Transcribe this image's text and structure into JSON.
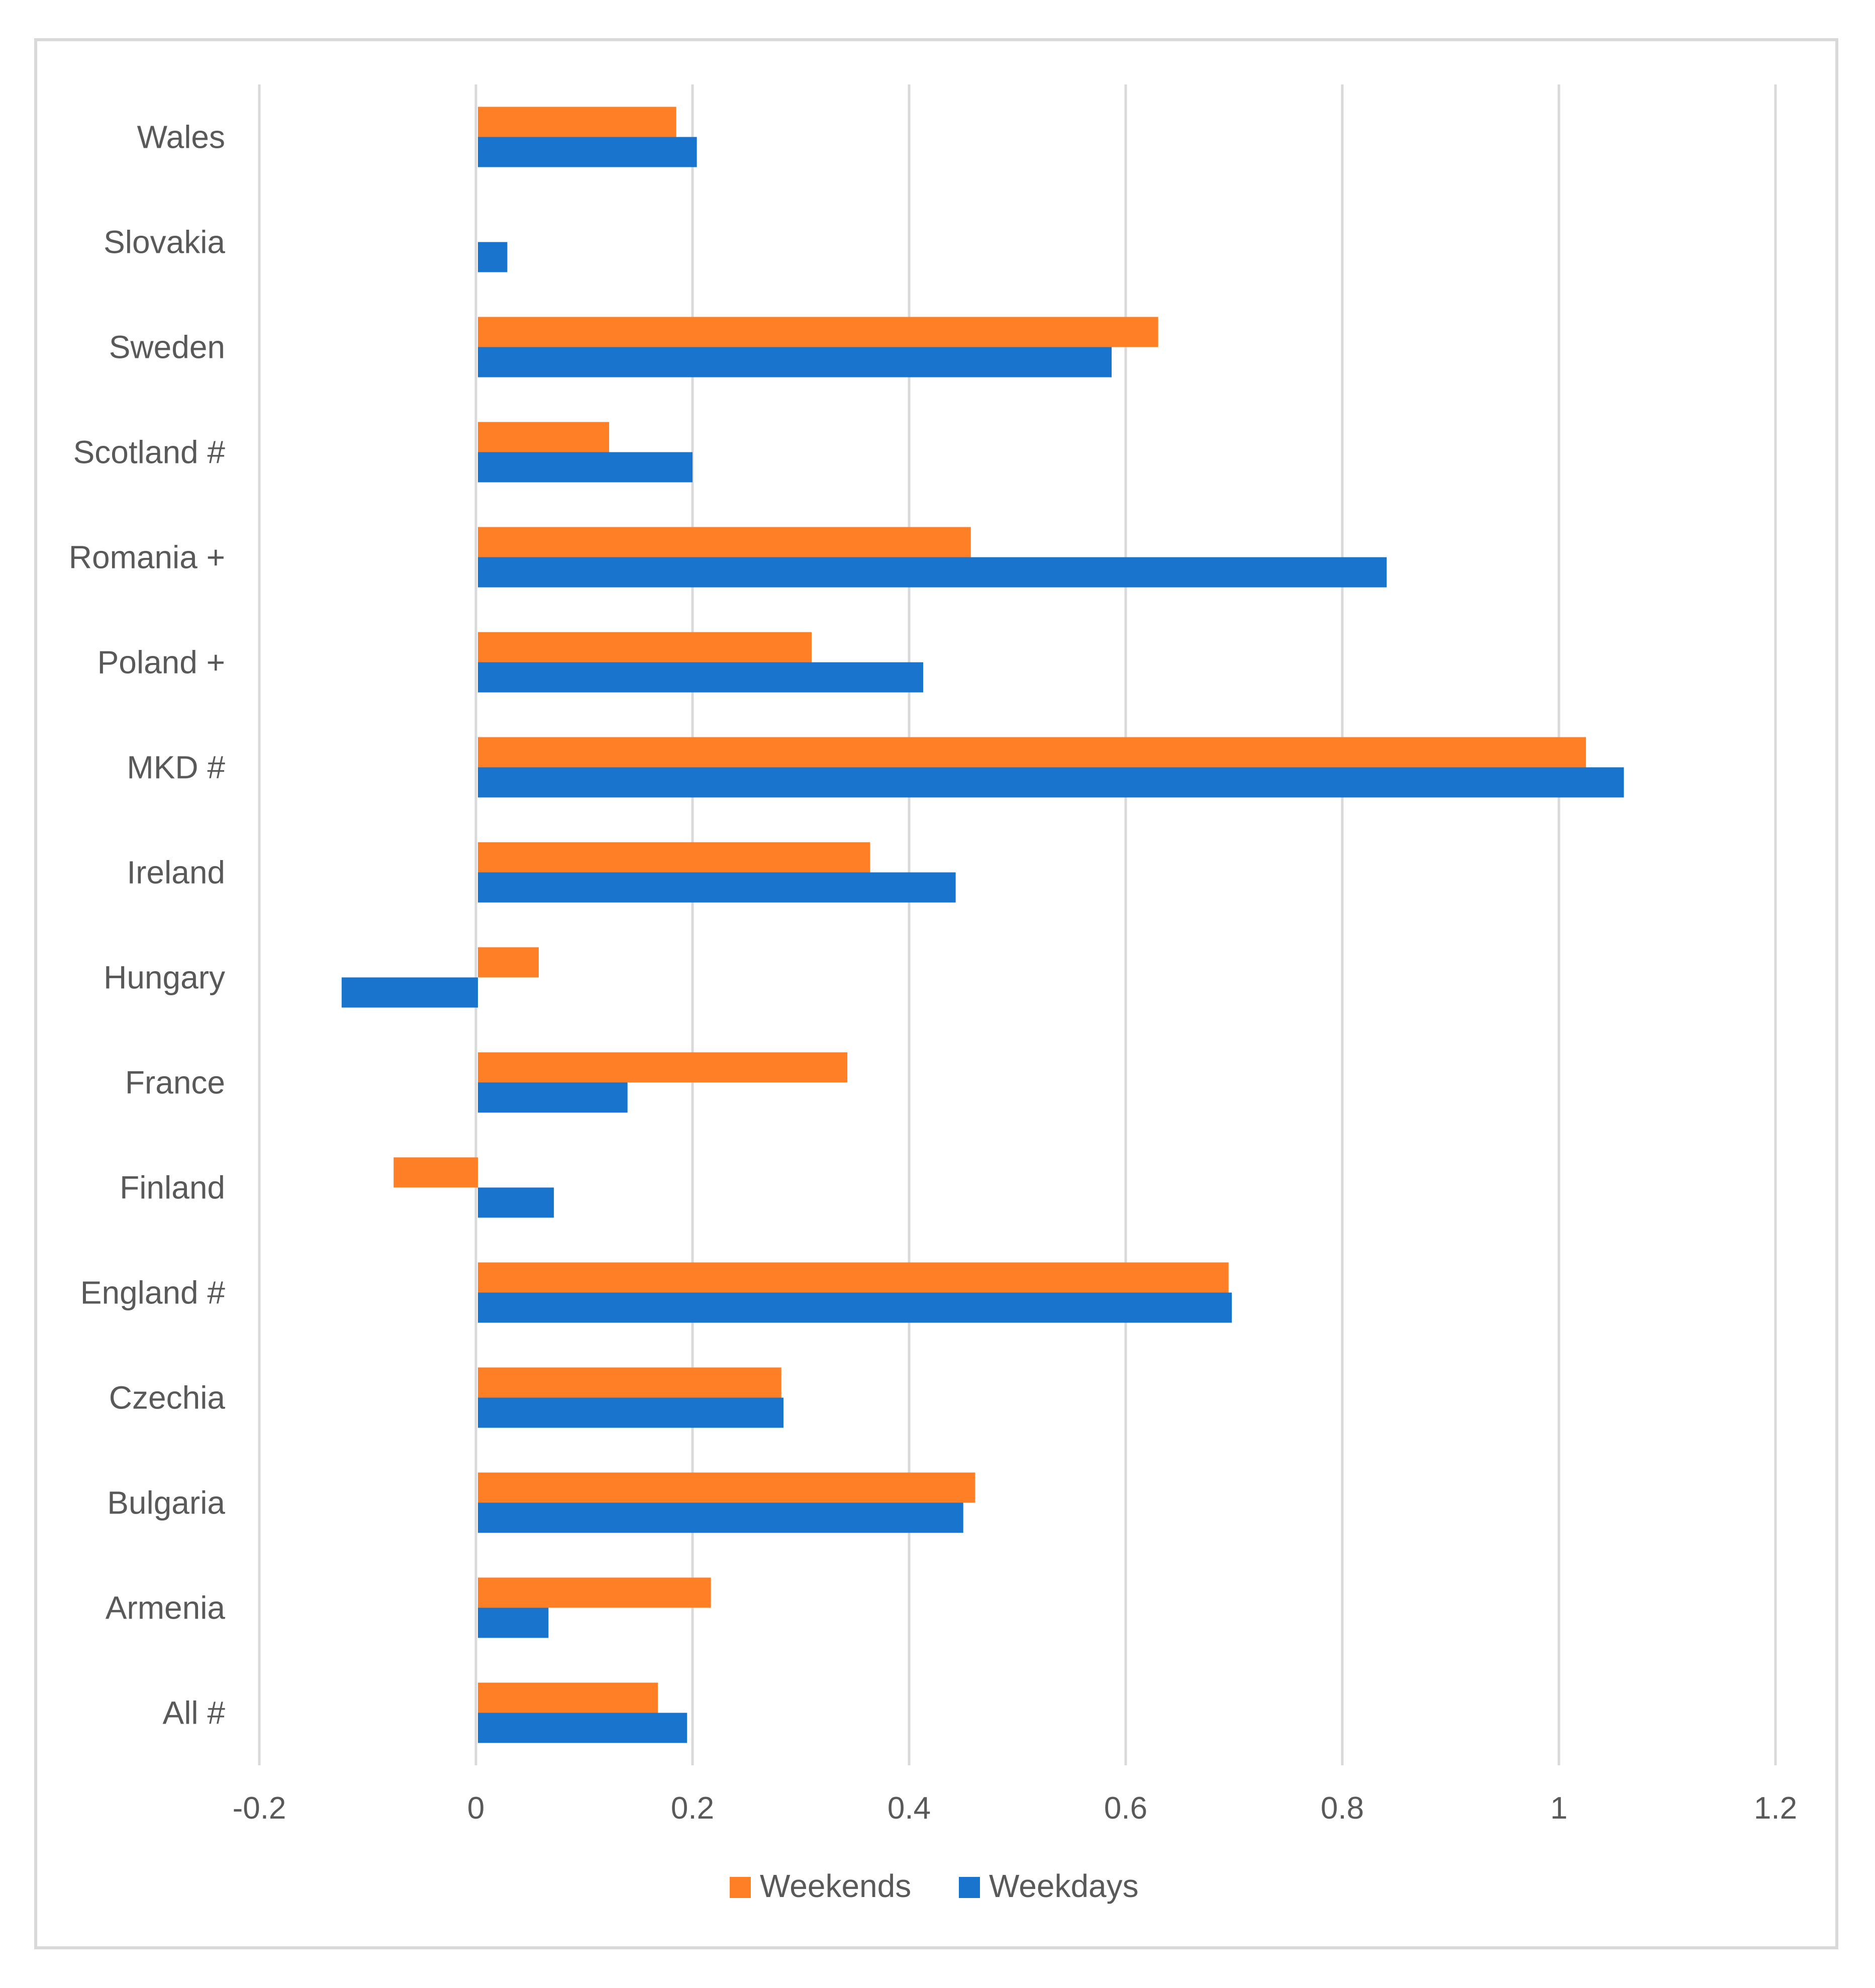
{
  "chart_data": {
    "type": "bar",
    "orientation": "horizontal",
    "title": "",
    "xlabel": "",
    "ylabel": "",
    "xlim": [
      -0.2,
      1.2
    ],
    "x_ticks": [
      -0.2,
      0,
      0.2,
      0.4,
      0.6,
      0.8,
      1,
      1.2
    ],
    "x_tick_labels": [
      "-0.2",
      "0",
      "0.2",
      "0.4",
      "0.6",
      "0.8",
      "1",
      "1.2"
    ],
    "grid": "vertical",
    "legend_position": "bottom",
    "categories": [
      "Wales",
      "Slovakia",
      "Sweden",
      "Scotland #",
      "Romania +",
      "Poland +",
      "MKD #",
      "Ireland",
      "Hungary",
      "France",
      "Finland",
      "England #",
      "Czechia",
      "Bulgaria",
      "Armenia",
      "All #"
    ],
    "series": [
      {
        "name": "Weekends",
        "color": "#FF7F27",
        "values": [
          0.185,
          0,
          0.63,
          0.123,
          0.457,
          0.31,
          1.025,
          0.364,
          0.058,
          0.343,
          -0.076,
          0.695,
          0.282,
          0.461,
          0.217,
          0.168
        ]
      },
      {
        "name": "Weekdays",
        "color": "#1874CD",
        "values": [
          0.204,
          0.029,
          0.587,
          0.2,
          0.841,
          0.413,
          1.06,
          0.443,
          -0.124,
          0.14,
          0.072,
          0.698,
          0.284,
          0.45,
          0.067,
          0.195
        ]
      }
    ]
  }
}
